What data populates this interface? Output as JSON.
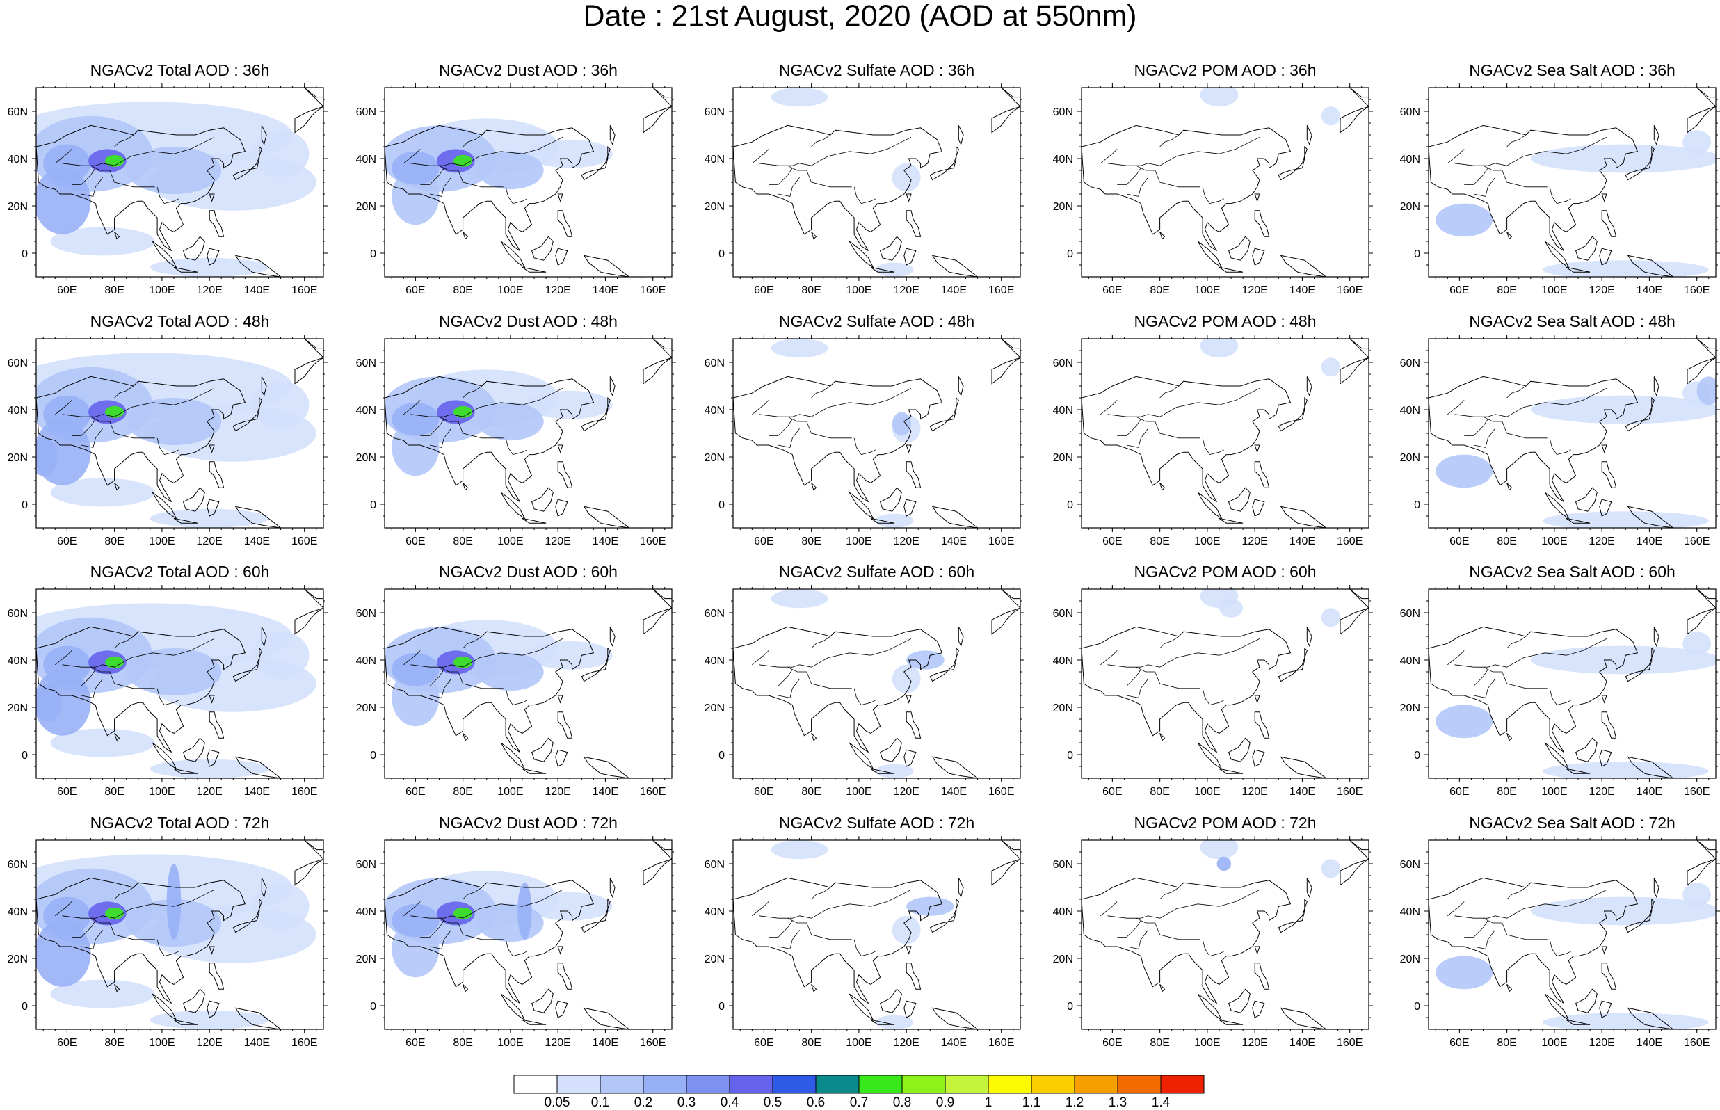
{
  "title": "Date : 21st August, 2020 (AOD at 550nm)",
  "map": {
    "lon_range": [
      47,
      168
    ],
    "lat_range": [
      -10,
      70
    ],
    "lon_ticks": [
      "60E",
      "80E",
      "100E",
      "120E",
      "140E",
      "160E"
    ],
    "lat_ticks": [
      "60N",
      "40N",
      "20N",
      "0"
    ],
    "projection": "cylindrical equidistant",
    "coastline_color": "#000000"
  },
  "panels": [
    {
      "title": "NGACv2 Total AOD : 36h",
      "species": "total",
      "hour": 36
    },
    {
      "title": "NGACv2 Dust AOD : 36h",
      "species": "dust",
      "hour": 36
    },
    {
      "title": "NGACv2 Sulfate AOD : 36h",
      "species": "sulfate",
      "hour": 36
    },
    {
      "title": "NGACv2 POM AOD : 36h",
      "species": "pom",
      "hour": 36
    },
    {
      "title": "NGACv2 Sea Salt AOD : 36h",
      "species": "seasalt",
      "hour": 36
    },
    {
      "title": "NGACv2 Total AOD : 48h",
      "species": "total",
      "hour": 48
    },
    {
      "title": "NGACv2 Dust AOD : 48h",
      "species": "dust",
      "hour": 48
    },
    {
      "title": "NGACv2 Sulfate AOD : 48h",
      "species": "sulfate",
      "hour": 48
    },
    {
      "title": "NGACv2 POM AOD : 48h",
      "species": "pom",
      "hour": 48
    },
    {
      "title": "NGACv2 Sea Salt AOD : 48h",
      "species": "seasalt",
      "hour": 48
    },
    {
      "title": "NGACv2 Total AOD : 60h",
      "species": "total",
      "hour": 60
    },
    {
      "title": "NGACv2 Dust AOD : 60h",
      "species": "dust",
      "hour": 60
    },
    {
      "title": "NGACv2 Sulfate AOD : 60h",
      "species": "sulfate",
      "hour": 60
    },
    {
      "title": "NGACv2 POM AOD : 60h",
      "species": "pom",
      "hour": 60
    },
    {
      "title": "NGACv2 Sea Salt AOD : 60h",
      "species": "seasalt",
      "hour": 60
    },
    {
      "title": "NGACv2 Total AOD : 72h",
      "species": "total",
      "hour": 72
    },
    {
      "title": "NGACv2 Dust AOD : 72h",
      "species": "dust",
      "hour": 72
    },
    {
      "title": "NGACv2 Sulfate AOD : 72h",
      "species": "sulfate",
      "hour": 72
    },
    {
      "title": "NGACv2 POM AOD : 72h",
      "species": "pom",
      "hour": 72
    },
    {
      "title": "NGACv2 Sea Salt  AOD : 72h",
      "species": "seasalt",
      "hour": 72
    }
  ],
  "colorbar": {
    "labels": [
      "0.05",
      "0.1",
      "0.2",
      "0.3",
      "0.4",
      "0.5",
      "0.6",
      "0.7",
      "0.8",
      "0.9",
      "1",
      "1.1",
      "1.2",
      "1.3",
      "1.4"
    ],
    "colors": [
      "#ffffff",
      "#d4e0fc",
      "#b2c6f8",
      "#98b0f6",
      "#7f92f2",
      "#6563ec",
      "#2e5ae6",
      "#0a8a8a",
      "#38e81a",
      "#8ef21a",
      "#c4f53a",
      "#fbfa04",
      "#fbce00",
      "#f79e00",
      "#f26b00",
      "#ee2200"
    ]
  }
}
